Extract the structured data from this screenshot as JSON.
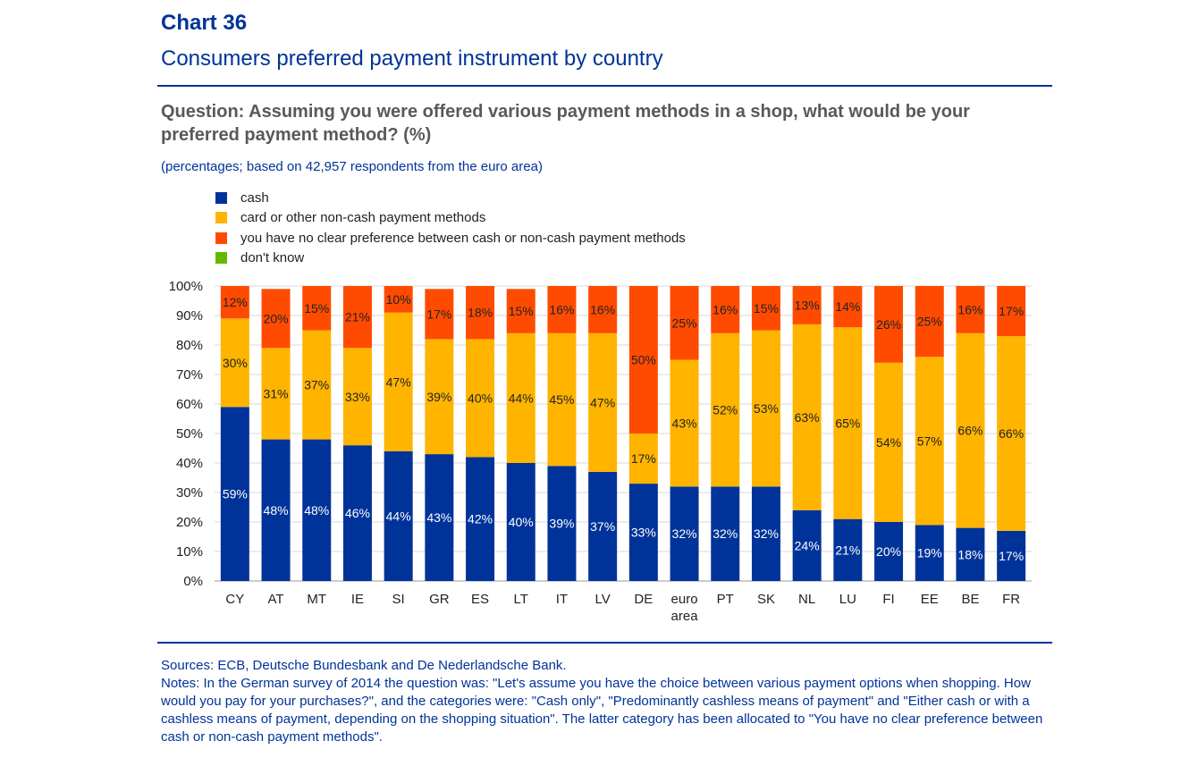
{
  "header": {
    "title": "Chart 36",
    "subtitle": "Consumers preferred payment instrument by country",
    "question": "Question: Assuming you were offered various payment methods in a shop, what would be your preferred payment method? (%)",
    "note": "(percentages; based on 42,957 respondents from the euro area)"
  },
  "footer": {
    "sources": "Sources: ECB, Deutsche Bundesbank and De Nederlandsche Bank.",
    "notes": "Notes: In the German survey of 2014 the question was: \"Let's assume you have the choice between various payment options when shopping. How would you pay for your purchases?\", and the categories were: \"Cash only\", \"Predominantly cashless means of payment\" and \"Either cash or with a cashless means of payment, depending on the shopping situation\". The latter category has been allocated to \"You have no clear preference between cash or non-cash payment methods\"."
  },
  "chart_data": {
    "type": "bar",
    "stacked": true,
    "categories": [
      "CY",
      "AT",
      "MT",
      "IE",
      "SI",
      "GR",
      "ES",
      "LT",
      "IT",
      "LV",
      "DE",
      "euro area",
      "PT",
      "SK",
      "NL",
      "LU",
      "FI",
      "EE",
      "BE",
      "FR"
    ],
    "series": [
      {
        "name": "cash",
        "color": "#003399",
        "values": [
          59,
          48,
          48,
          46,
          44,
          43,
          42,
          40,
          39,
          37,
          33,
          32,
          32,
          32,
          24,
          21,
          20,
          19,
          18,
          17
        ]
      },
      {
        "name": "card or other non-cash payment methods",
        "color": "#FFB400",
        "values": [
          30,
          31,
          37,
          33,
          47,
          39,
          40,
          44,
          45,
          47,
          17,
          43,
          52,
          53,
          63,
          65,
          54,
          57,
          66,
          66
        ]
      },
      {
        "name": "you have no clear preference between cash or non-cash payment methods",
        "color": "#FF4B00",
        "values": [
          12,
          20,
          15,
          21,
          10,
          17,
          18,
          15,
          16,
          16,
          50,
          25,
          16,
          15,
          13,
          14,
          26,
          25,
          16,
          17
        ]
      },
      {
        "name": "don't know",
        "color": "#65B800",
        "values": [
          0,
          0,
          0,
          0,
          0,
          0,
          0,
          0,
          0,
          0,
          0,
          0,
          0,
          0,
          0,
          0,
          0,
          0,
          0,
          0
        ]
      }
    ],
    "ylim": [
      0,
      100
    ],
    "yticks": [
      "0%",
      "10%",
      "20%",
      "30%",
      "40%",
      "50%",
      "60%",
      "70%",
      "80%",
      "90%",
      "100%"
    ],
    "grid": true,
    "legend_position": "top-left"
  }
}
